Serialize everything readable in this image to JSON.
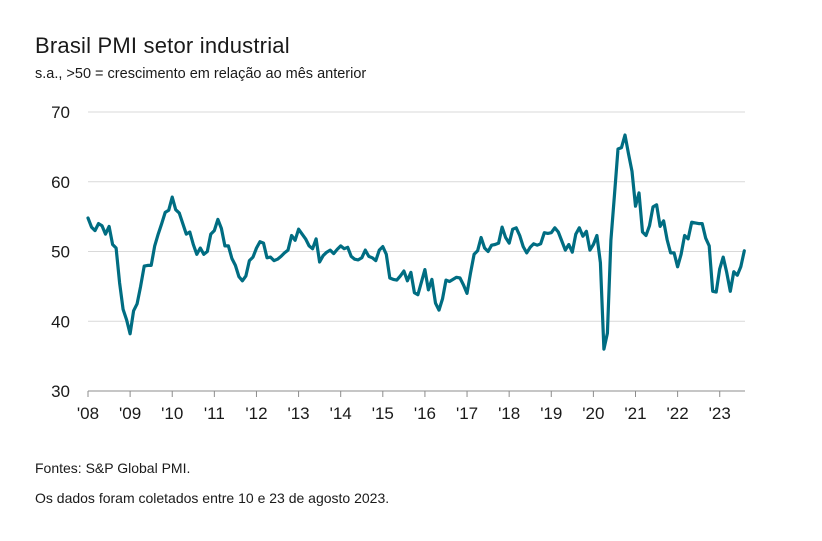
{
  "header": {
    "title": "Brasil PMI setor industrial",
    "subtitle": "s.a., >50 = crescimento em relação ao mês anterior"
  },
  "footer": {
    "source": "Fontes: S&P Global PMI.",
    "note": "Os dados foram coletados entre 10 e 23 de agosto 2023."
  },
  "colors": {
    "line": "#006d82",
    "grid": "#d9d9d9",
    "axis": "#8c8c8c"
  },
  "chart_data": {
    "type": "line",
    "title": "Brasil PMI setor industrial",
    "subtitle": "s.a., >50 = crescimento em relação ao mês anterior",
    "ylim": [
      30,
      70
    ],
    "yticks": [
      30,
      40,
      50,
      60,
      70
    ],
    "xlim": [
      "2008-01",
      "2023-08"
    ],
    "xtick_labels": [
      "'08",
      "'09",
      "'10",
      "'11",
      "'12",
      "'13",
      "'14",
      "'15",
      "'16",
      "'17",
      "'18",
      "'19",
      "'20",
      "'21",
      "'22",
      "'23"
    ],
    "xtick_years": [
      2008,
      2009,
      2010,
      2011,
      2012,
      2013,
      2014,
      2015,
      2016,
      2017,
      2018,
      2019,
      2020,
      2021,
      2022,
      2023
    ],
    "grid": "horizontal",
    "series": [
      {
        "x": [
          "2008-01",
          "2008-02",
          "2008-03",
          "2008-04",
          "2008-05",
          "2008-06",
          "2008-07",
          "2008-08",
          "2008-09",
          "2008-10",
          "2008-11",
          "2008-12",
          "2009-01",
          "2009-02",
          "2009-03",
          "2009-04",
          "2009-05",
          "2009-06",
          "2009-07",
          "2009-08",
          "2009-09",
          "2009-10",
          "2009-11",
          "2009-12",
          "2010-01",
          "2010-02",
          "2010-03",
          "2010-04",
          "2010-05",
          "2010-06",
          "2010-07",
          "2010-08",
          "2010-09",
          "2010-10",
          "2010-11",
          "2010-12",
          "2011-01",
          "2011-02",
          "2011-03",
          "2011-04",
          "2011-05",
          "2011-06",
          "2011-07",
          "2011-08",
          "2011-09",
          "2011-10",
          "2011-11",
          "2011-12",
          "2012-01",
          "2012-02",
          "2012-03",
          "2012-04",
          "2012-05",
          "2012-06",
          "2012-07",
          "2012-08",
          "2012-09",
          "2012-10",
          "2012-11",
          "2012-12",
          "2013-01",
          "2013-02",
          "2013-03",
          "2013-04",
          "2013-05",
          "2013-06",
          "2013-07",
          "2013-08",
          "2013-09",
          "2013-10",
          "2013-11",
          "2013-12",
          "2014-01",
          "2014-02",
          "2014-03",
          "2014-04",
          "2014-05",
          "2014-06",
          "2014-07",
          "2014-08",
          "2014-09",
          "2014-10",
          "2014-11",
          "2014-12",
          "2015-01",
          "2015-02",
          "2015-03",
          "2015-04",
          "2015-05",
          "2015-06",
          "2015-07",
          "2015-08",
          "2015-09",
          "2015-10",
          "2015-11",
          "2015-12",
          "2016-01",
          "2016-02",
          "2016-03",
          "2016-04",
          "2016-05",
          "2016-06",
          "2016-07",
          "2016-08",
          "2016-09",
          "2016-10",
          "2016-11",
          "2016-12",
          "2017-01",
          "2017-02",
          "2017-03",
          "2017-04",
          "2017-05",
          "2017-06",
          "2017-07",
          "2017-08",
          "2017-09",
          "2017-10",
          "2017-11",
          "2017-12",
          "2018-01",
          "2018-02",
          "2018-03",
          "2018-04",
          "2018-05",
          "2018-06",
          "2018-07",
          "2018-08",
          "2018-09",
          "2018-10",
          "2018-11",
          "2018-12",
          "2019-01",
          "2019-02",
          "2019-03",
          "2019-04",
          "2019-05",
          "2019-06",
          "2019-07",
          "2019-08",
          "2019-09",
          "2019-10",
          "2019-11",
          "2019-12",
          "2020-01",
          "2020-02",
          "2020-03",
          "2020-04",
          "2020-05",
          "2020-06",
          "2020-07",
          "2020-08",
          "2020-09",
          "2020-10",
          "2020-11",
          "2020-12",
          "2021-01",
          "2021-02",
          "2021-03",
          "2021-04",
          "2021-05",
          "2021-06",
          "2021-07",
          "2021-08",
          "2021-09",
          "2021-10",
          "2021-11",
          "2021-12",
          "2022-01",
          "2022-02",
          "2022-03",
          "2022-04",
          "2022-05",
          "2022-06",
          "2022-07",
          "2022-08",
          "2022-09",
          "2022-10",
          "2022-11",
          "2022-12",
          "2023-01",
          "2023-02",
          "2023-03",
          "2023-04",
          "2023-05",
          "2023-06",
          "2023-07",
          "2023-08"
        ],
        "y": [
          54.8,
          53.5,
          53.0,
          54.0,
          53.7,
          52.5,
          53.6,
          51.0,
          50.5,
          45.5,
          41.7,
          40.2,
          38.2,
          41.5,
          42.5,
          45.0,
          47.9,
          48.0,
          48.0,
          50.8,
          52.5,
          54.0,
          55.6,
          55.9,
          57.8,
          56.0,
          55.5,
          54.0,
          52.5,
          52.8,
          51.0,
          49.6,
          50.5,
          49.6,
          50.0,
          52.5,
          53.0,
          54.6,
          53.3,
          50.8,
          50.8,
          49.0,
          48.0,
          46.4,
          45.8,
          46.5,
          48.7,
          49.2,
          50.5,
          51.4,
          51.2,
          49.1,
          49.2,
          48.7,
          48.9,
          49.3,
          49.8,
          50.2,
          52.3,
          51.6,
          53.2,
          52.5,
          51.8,
          50.8,
          50.4,
          51.8,
          48.5,
          49.4,
          49.9,
          50.2,
          49.7,
          50.3,
          50.8,
          50.4,
          50.6,
          49.3,
          48.9,
          48.8,
          49.1,
          50.2,
          49.3,
          49.1,
          48.7,
          50.2,
          50.7,
          49.6,
          46.2,
          46.0,
          45.9,
          46.5,
          47.2,
          45.8,
          47.0,
          44.1,
          43.8,
          45.6,
          47.4,
          44.5,
          46.0,
          42.6,
          41.6,
          43.2,
          45.9,
          45.7,
          46.0,
          46.3,
          46.2,
          45.2,
          44.0,
          46.9,
          49.6,
          50.1,
          52.0,
          50.5,
          50.0,
          50.9,
          51.0,
          51.2,
          53.5,
          52.0,
          51.2,
          53.2,
          53.4,
          52.3,
          50.7,
          49.8,
          50.6,
          51.1,
          50.9,
          51.1,
          52.7,
          52.6,
          52.7,
          53.4,
          52.8,
          51.5,
          50.2,
          51.0,
          49.9,
          52.5,
          53.4,
          52.2,
          52.9,
          50.2,
          51.0,
          52.3,
          48.4,
          36.0,
          38.3,
          51.6,
          58.0,
          64.7,
          64.9,
          66.7,
          64.0,
          61.5,
          56.5,
          58.4,
          52.8,
          52.3,
          53.7,
          56.4,
          56.7,
          53.6,
          54.4,
          51.7,
          49.8,
          49.8,
          47.8,
          49.6,
          52.3,
          51.8,
          54.2,
          54.1,
          54.0,
          54.0,
          51.9,
          50.8,
          44.3,
          44.2,
          47.5,
          49.2,
          47.0,
          44.3,
          47.1,
          46.6,
          47.8,
          50.1
        ]
      }
    ]
  }
}
